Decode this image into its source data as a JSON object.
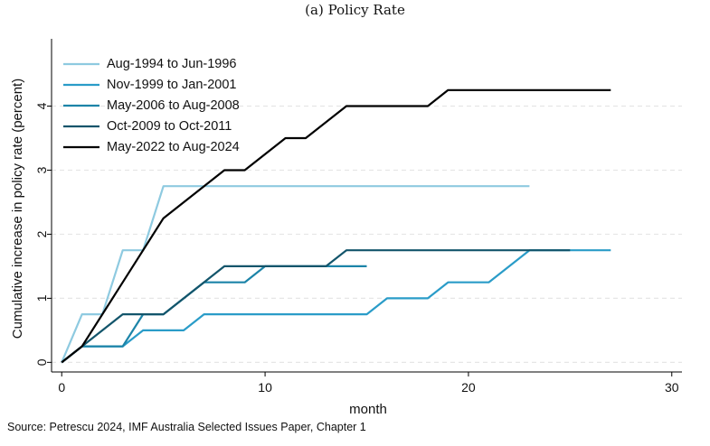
{
  "chart_data": {
    "type": "line",
    "title": "(a) Policy Rate",
    "xlabel": "month",
    "ylabel": "Cumulative increase in policy rate (percent)",
    "xlim": [
      -0.5,
      30.5
    ],
    "ylim": [
      -0.15,
      5.05
    ],
    "xticks": [
      0,
      10,
      20,
      30
    ],
    "yticks": [
      0,
      1,
      2,
      3,
      4
    ],
    "grid": true,
    "legend_position": "top-left",
    "series": [
      {
        "name": "Aug-1994 to Jun-1996",
        "color": "#8ecae0",
        "points": [
          [
            0,
            0
          ],
          [
            1,
            0.75
          ],
          [
            2,
            0.75
          ],
          [
            3,
            1.75
          ],
          [
            4,
            1.75
          ],
          [
            5,
            2.75
          ],
          [
            23,
            2.75
          ]
        ]
      },
      {
        "name": "Nov-1999 to Jan-2001",
        "color": "#2a9cc8",
        "points": [
          [
            0,
            0
          ],
          [
            1,
            0.25
          ],
          [
            3,
            0.25
          ],
          [
            4,
            0.5
          ],
          [
            6,
            0.5
          ],
          [
            7,
            0.75
          ],
          [
            15,
            0.75
          ],
          [
            16,
            1.0
          ],
          [
            18,
            1.0
          ],
          [
            19,
            1.25
          ],
          [
            21,
            1.25
          ],
          [
            23,
            1.75
          ],
          [
            27,
            1.75
          ]
        ]
      },
      {
        "name": "May-2006 to Aug-2008",
        "color": "#1c84a8",
        "points": [
          [
            0,
            0
          ],
          [
            1,
            0.25
          ],
          [
            3,
            0.25
          ],
          [
            4,
            0.75
          ],
          [
            5,
            0.75
          ],
          [
            7,
            1.25
          ],
          [
            8,
            1.25
          ],
          [
            9,
            1.25
          ],
          [
            10,
            1.5
          ],
          [
            15,
            1.5
          ]
        ]
      },
      {
        "name": "Oct-2009 to Oct-2011",
        "color": "#13556b",
        "points": [
          [
            0,
            0
          ],
          [
            1,
            0.25
          ],
          [
            3,
            0.75
          ],
          [
            5,
            0.75
          ],
          [
            8,
            1.5
          ],
          [
            13,
            1.5
          ],
          [
            14,
            1.75
          ],
          [
            25,
            1.75
          ]
        ]
      },
      {
        "name": "May-2022 to Aug-2024",
        "color": "#000000",
        "points": [
          [
            0,
            0
          ],
          [
            1,
            0.25
          ],
          [
            5,
            2.25
          ],
          [
            8,
            3.0
          ],
          [
            9,
            3.0
          ],
          [
            11,
            3.5
          ],
          [
            12,
            3.5
          ],
          [
            14,
            4.0
          ],
          [
            18,
            4.0
          ],
          [
            19,
            4.25
          ],
          [
            27,
            4.25
          ]
        ]
      }
    ]
  },
  "source": "Source: Petrescu 2024, IMF Australia Selected Issues Paper, Chapter 1"
}
